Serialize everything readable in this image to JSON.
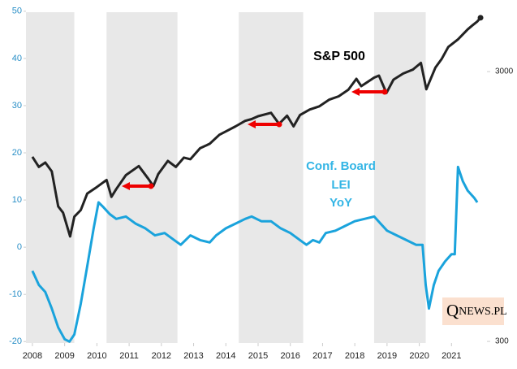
{
  "chart_data": {
    "type": "line",
    "annotations": {
      "sp": "S&P 500",
      "lei": [
        "Conf. Board",
        "LEI",
        "YoY"
      ]
    },
    "logo": [
      "Q",
      "NEWS.PL"
    ],
    "xlim": [
      2007.8,
      2022.1
    ],
    "xticks": [
      2008,
      2009,
      2010,
      2011,
      2012,
      2013,
      2014,
      2015,
      2016,
      2017,
      2018,
      2019,
      2020,
      2021
    ],
    "ylim": [
      -20.3,
      49.8
    ],
    "yticks": [
      -20,
      -10,
      0,
      10,
      20,
      30,
      40,
      50
    ],
    "y2lim": [
      296,
      4980
    ],
    "y2ticks": [
      300,
      3000
    ],
    "y2_log": true,
    "shaded_periods": [
      [
        2007.8,
        2009.3
      ],
      [
        2010.3,
        2012.5
      ],
      [
        2014.4,
        2016.4
      ],
      [
        2018.6,
        2020.2
      ]
    ],
    "shade_color": "#e8e8e8",
    "series": [
      {
        "name": "S&P 500",
        "color": "#222222",
        "axis": "y2",
        "x": [
          2008.0,
          2008.2,
          2008.4,
          2008.6,
          2008.8,
          2008.95,
          2009.17,
          2009.3,
          2009.5,
          2009.7,
          2010.0,
          2010.3,
          2010.45,
          2010.6,
          2010.9,
          2011.3,
          2011.6,
          2011.75,
          2011.9,
          2012.2,
          2012.45,
          2012.7,
          2012.9,
          2013.2,
          2013.5,
          2013.8,
          2014.0,
          2014.3,
          2014.6,
          2014.8,
          2015.0,
          2015.4,
          2015.65,
          2015.9,
          2016.1,
          2016.3,
          2016.6,
          2016.9,
          2017.2,
          2017.5,
          2017.8,
          2018.05,
          2018.2,
          2018.6,
          2018.75,
          2018.98,
          2019.2,
          2019.5,
          2019.8,
          2020.05,
          2020.22,
          2020.5,
          2020.7,
          2020.9,
          2021.2,
          2021.5,
          2021.65,
          2021.8,
          2021.9
        ],
        "values": [
          1450,
          1330,
          1380,
          1280,
          950,
          900,
          735,
          870,
          920,
          1060,
          1120,
          1190,
          1030,
          1100,
          1240,
          1340,
          1200,
          1130,
          1250,
          1400,
          1330,
          1440,
          1420,
          1560,
          1620,
          1750,
          1800,
          1880,
          1970,
          2000,
          2050,
          2110,
          1920,
          2060,
          1880,
          2070,
          2170,
          2230,
          2360,
          2430,
          2570,
          2820,
          2650,
          2850,
          2900,
          2500,
          2800,
          2950,
          3050,
          3230,
          2580,
          3100,
          3350,
          3700,
          3950,
          4300,
          4450,
          4600,
          4750
        ]
      },
      {
        "name": "Conf. Board LEI YoY",
        "color": "#1aa3dc",
        "x": [
          2008.0,
          2008.2,
          2008.4,
          2008.6,
          2008.8,
          2009.0,
          2009.15,
          2009.3,
          2009.5,
          2009.7,
          2009.9,
          2010.05,
          2010.2,
          2010.4,
          2010.6,
          2010.9,
          2011.2,
          2011.5,
          2011.8,
          2012.1,
          2012.4,
          2012.6,
          2012.9,
          2013.2,
          2013.5,
          2013.7,
          2014.0,
          2014.3,
          2014.6,
          2014.8,
          2015.1,
          2015.4,
          2015.7,
          2016.0,
          2016.3,
          2016.5,
          2016.7,
          2016.9,
          2017.1,
          2017.4,
          2017.7,
          2018.0,
          2018.3,
          2018.6,
          2018.8,
          2019.0,
          2019.3,
          2019.6,
          2019.9,
          2020.1,
          2020.2,
          2020.3,
          2020.45,
          2020.6,
          2020.8,
          2021.0,
          2021.1,
          2021.2,
          2021.35,
          2021.5,
          2021.7,
          2021.8
        ],
        "values": [
          -5,
          -8,
          -9.5,
          -13,
          -17,
          -19.5,
          -20,
          -18.5,
          -12,
          -4,
          4,
          9.5,
          8.5,
          7,
          6,
          6.5,
          5,
          4,
          2.5,
          3,
          1.5,
          0.5,
          2.5,
          1.5,
          1,
          2.5,
          4,
          5,
          6,
          6.5,
          5.5,
          5.5,
          4,
          3,
          1.5,
          0.5,
          1.5,
          1,
          3,
          3.5,
          4.5,
          5.5,
          6,
          6.5,
          5,
          3.5,
          2.5,
          1.5,
          0.5,
          0.5,
          -8,
          -13,
          -8,
          -5,
          -3,
          -1.5,
          -1.5,
          17,
          14,
          12,
          10.5,
          9.5
        ]
      }
    ]
  }
}
